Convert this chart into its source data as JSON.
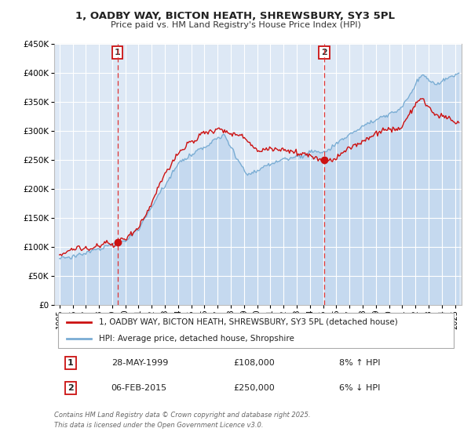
{
  "title": "1, OADBY WAY, BICTON HEATH, SHREWSBURY, SY3 5PL",
  "subtitle": "Price paid vs. HM Land Registry's House Price Index (HPI)",
  "legend_line1": "1, OADBY WAY, BICTON HEATH, SHREWSBURY, SY3 5PL (detached house)",
  "legend_line2": "HPI: Average price, detached house, Shropshire",
  "bg_color": "#ffffff",
  "plot_bg_color": "#dde8f5",
  "grid_color": "#ffffff",
  "hpi_color": "#7aadd4",
  "hpi_fill_color": "#c5d9ef",
  "price_color": "#cc1111",
  "vline_color": "#dd3333",
  "annotation_box_color": "#cc1111",
  "ylim": [
    0,
    450000
  ],
  "yticks": [
    0,
    50000,
    100000,
    150000,
    200000,
    250000,
    300000,
    350000,
    400000,
    450000
  ],
  "xlim_min": 1994.6,
  "xlim_max": 2025.5,
  "sale1_year": 1999.41,
  "sale1_price": 108000,
  "sale2_year": 2015.09,
  "sale2_price": 250000,
  "footnote1": "Contains HM Land Registry data © Crown copyright and database right 2025.",
  "footnote2": "This data is licensed under the Open Government Licence v3.0.",
  "table_row1": [
    "1",
    "28-MAY-1999",
    "£108,000",
    "8% ↑ HPI"
  ],
  "table_row2": [
    "2",
    "06-FEB-2015",
    "£250,000",
    "6% ↓ HPI"
  ]
}
